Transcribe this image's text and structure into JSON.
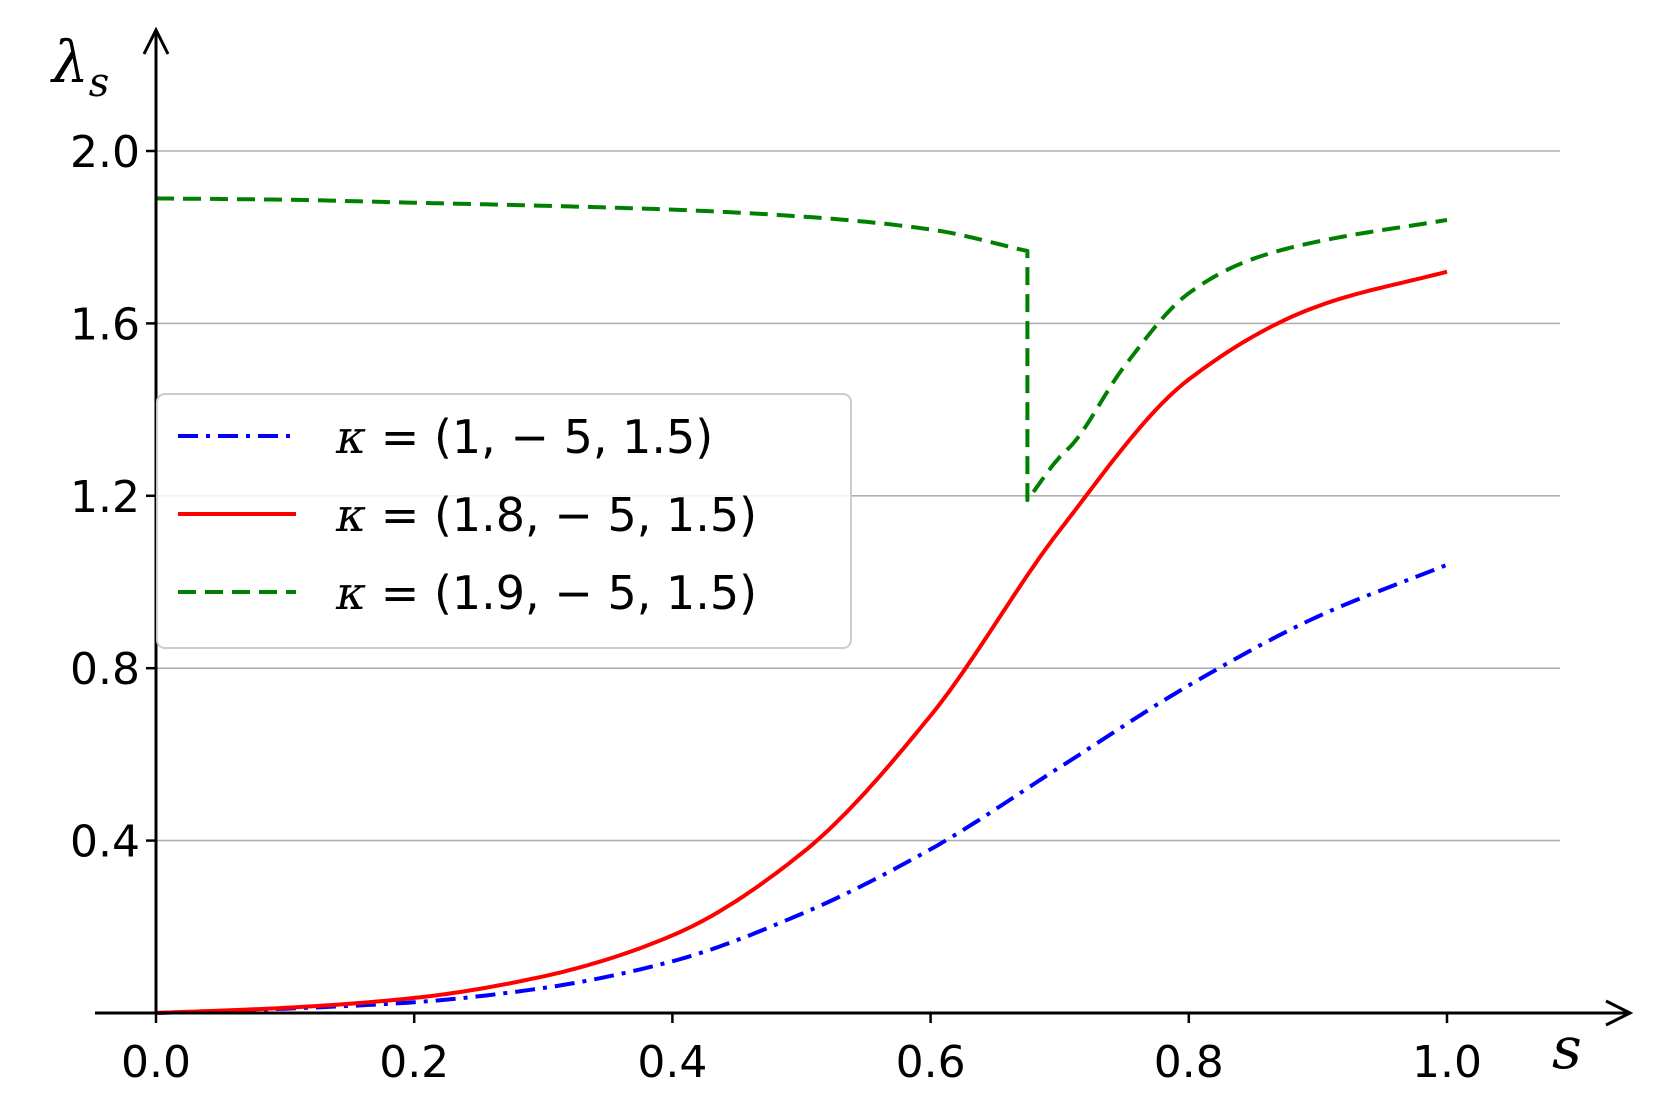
{
  "chart_data": {
    "type": "line",
    "xlabel": "s",
    "ylabel": "λ",
    "ylabel_sub": "s",
    "xlim": [
      0,
      1.0
    ],
    "ylim": [
      0,
      2.0
    ],
    "x_ticks": [
      0.0,
      0.2,
      0.4,
      0.6,
      0.8,
      1.0
    ],
    "x_tick_labels": [
      "0.0",
      "0.2",
      "0.4",
      "0.6",
      "0.8",
      "1.0"
    ],
    "y_ticks": [
      0.4,
      0.8,
      1.2,
      1.6,
      2.0
    ],
    "y_tick_labels": [
      "0.4",
      "0.8",
      "1.2",
      "1.6",
      "2.0"
    ],
    "grid": "horizontal",
    "legend_position": "center-left",
    "series": [
      {
        "name": "κ = (1, − 5, 1.5)",
        "name_kappa": "κ",
        "name_rest": " = (1, − 5, 1.5)",
        "color": "#0000ff",
        "style": "dashdot",
        "x": [
          0.0,
          0.1,
          0.2,
          0.3,
          0.4,
          0.5,
          0.6,
          0.7,
          0.8,
          0.9,
          1.0
        ],
        "y": [
          0.0,
          0.01,
          0.025,
          0.058,
          0.12,
          0.23,
          0.38,
          0.57,
          0.76,
          0.92,
          1.04
        ]
      },
      {
        "name": "κ = (1.8, − 5, 1.5)",
        "name_kappa": "κ",
        "name_rest": " = (1.8, − 5, 1.5)",
        "color": "#ff0000",
        "style": "solid",
        "x": [
          0.0,
          0.1,
          0.2,
          0.3,
          0.4,
          0.5,
          0.6,
          0.7,
          0.8,
          0.9,
          1.0
        ],
        "y": [
          0.0,
          0.012,
          0.035,
          0.085,
          0.18,
          0.37,
          0.69,
          1.12,
          1.47,
          1.64,
          1.72
        ]
      },
      {
        "name": "κ = (1.9, − 5, 1.5)",
        "name_kappa": "κ",
        "name_rest": " = (1.9, − 5, 1.5)",
        "color": "#008000",
        "style": "dashed",
        "x": [
          0.0,
          0.1,
          0.2,
          0.3,
          0.4,
          0.5,
          0.6,
          0.675,
          0.675,
          0.7,
          0.71,
          0.75,
          0.8,
          0.85,
          0.9,
          1.0
        ],
        "y": [
          1.89,
          1.887,
          1.88,
          1.873,
          1.864,
          1.848,
          1.818,
          1.768,
          1.19,
          1.29,
          1.32,
          1.5,
          1.67,
          1.75,
          1.79,
          1.84
        ]
      }
    ]
  }
}
